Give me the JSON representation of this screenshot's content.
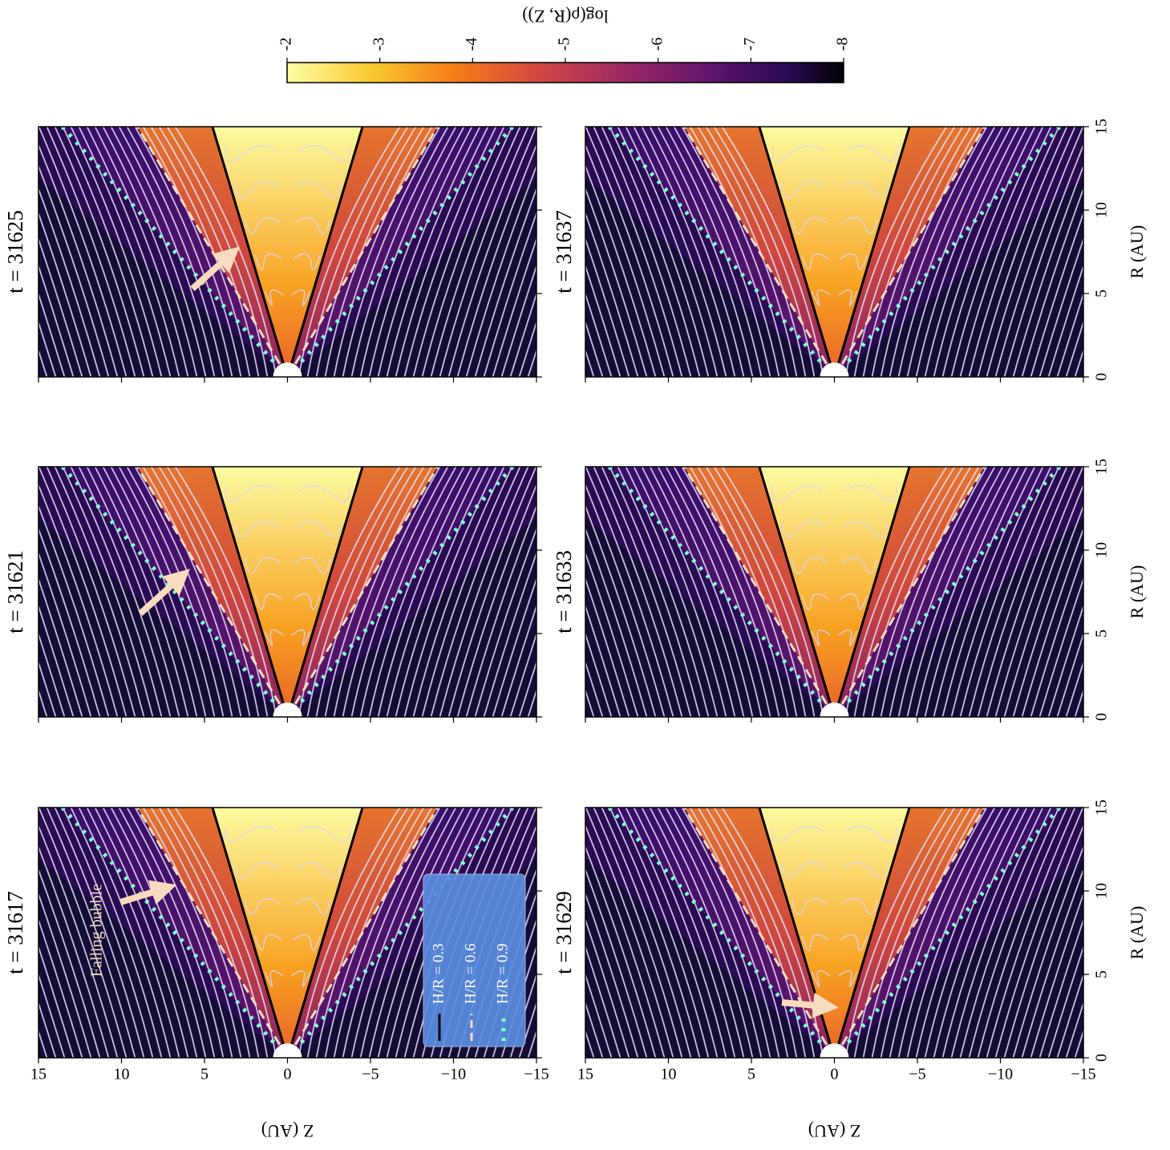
{
  "chart_data": {
    "type": "density-map",
    "panels": [
      {
        "title": "t = 31617"
      },
      {
        "title": "t = 31621"
      },
      {
        "title": "t = 31625"
      },
      {
        "title": "t = 31629"
      },
      {
        "title": "t = 31633"
      },
      {
        "title": "t = 31637"
      }
    ],
    "xlabel": "R (AU)",
    "xlim": [
      0,
      15
    ],
    "xticks": [
      0,
      5,
      10,
      15
    ],
    "ylabel": "Z (AU)",
    "ylim": [
      -15,
      15
    ],
    "yticks": [
      15,
      10,
      5,
      0,
      {
        "value": -5,
        "label": "−5"
      },
      {
        "value": -10,
        "label": "−10"
      },
      {
        "value": -15,
        "label": "−15"
      }
    ],
    "colorbar": {
      "label": "log(ρ(R, Z))",
      "lim": [
        -8,
        -2
      ],
      "ticks": [
        -2,
        -3,
        -4,
        -5,
        -6,
        -7,
        -8
      ]
    },
    "legend": [
      {
        "label": "H/R = 0.3"
      },
      {
        "label": "H/R = 0.6"
      },
      {
        "label": "H/R = 0.9"
      }
    ],
    "annotation": "Falling bubble"
  }
}
